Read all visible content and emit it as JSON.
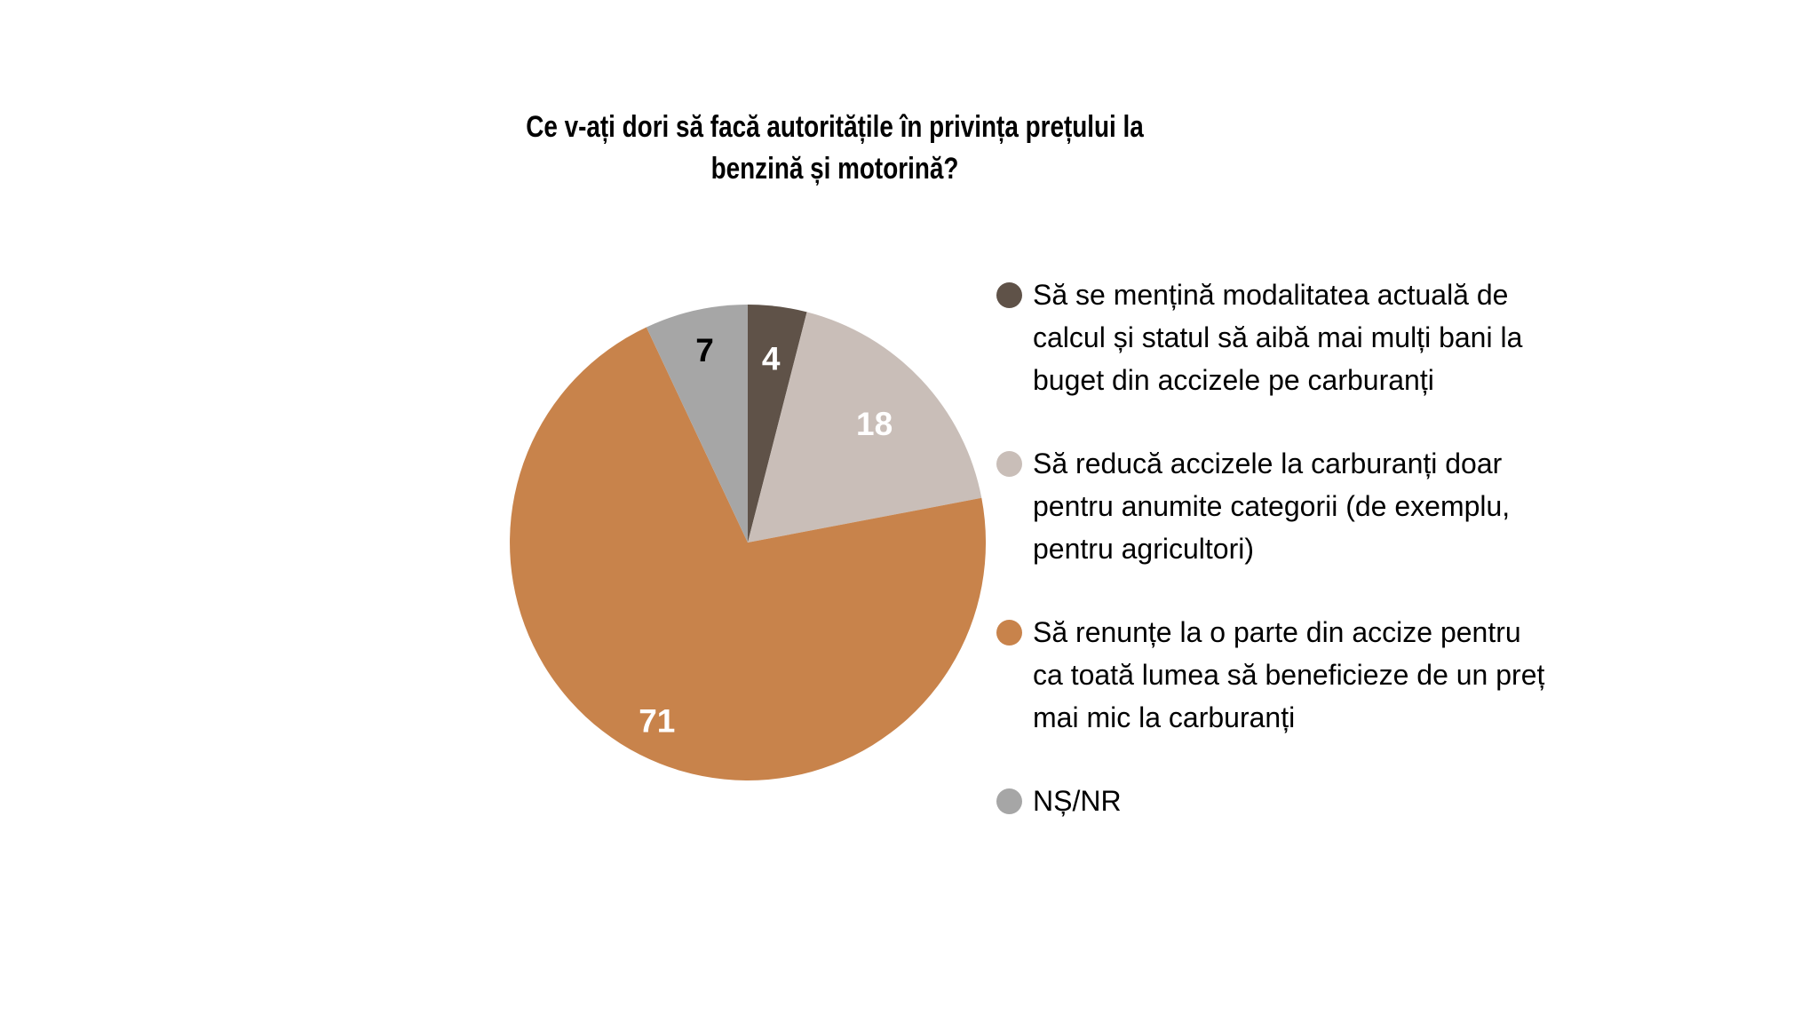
{
  "title": {
    "text": "Ce v-ați dori să facă autoritățile în privința prețului la\nbenzină și motorină?"
  },
  "chart_data": {
    "type": "pie",
    "title": "Ce v-ați dori să facă autoritățile în privința prețului la benzină și motorină?",
    "categories": [
      "Să se mențină modalitatea actuală de calcul și statul să aibă mai mulți bani la buget din accizele pe carburanți",
      "Să reducă accizele la carburanți doar pentru anumite categorii (de exemplu, pentru agricultori)",
      "Să renunțe la o parte din accize pentru ca toată lumea să beneficieze de un preț mai mic la carburanți",
      "NȘ/NR"
    ],
    "values": [
      4,
      18,
      71,
      7
    ],
    "unit": "percent",
    "colors": [
      "#5F5248",
      "#C9BEB8",
      "#C8834B",
      "#A6A6A6"
    ],
    "data_label_colors": [
      "#FFFFFF",
      "#FFFFFF",
      "#FFFFFF",
      "#000000"
    ],
    "data_labels": [
      "4",
      "18",
      "71",
      "7"
    ],
    "start_angle_deg": 0,
    "direction": "clockwise",
    "legend_position": "right",
    "background": "#FFFFFF"
  },
  "legend": {
    "items": [
      {
        "label": "Să se mențină modalitatea actuală de\ncalcul și statul să aibă mai mulți bani la\nbuget din accizele pe carburanți",
        "color": "#5F5248"
      },
      {
        "label": "Să reducă accizele la carburanți doar\npentru anumite categorii (de exemplu,\npentru agricultori)",
        "color": "#C9BEB8"
      },
      {
        "label": "Să renunțe la o parte din accize pentru\nca toată lumea să beneficieze de un preț\nmai mic la carburanți",
        "color": "#C8834B"
      },
      {
        "label": "NȘ/NR",
        "color": "#A6A6A6"
      }
    ]
  }
}
